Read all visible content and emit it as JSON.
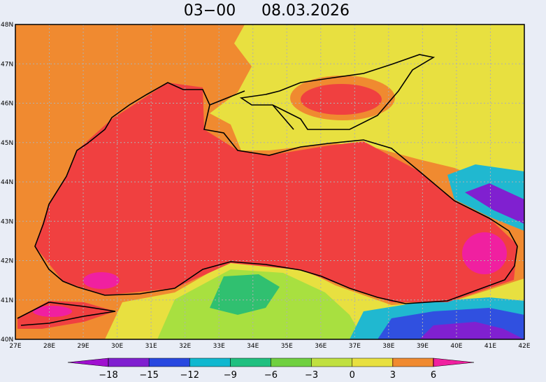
{
  "header": {
    "time": "03−00",
    "date": "08.03.2026"
  },
  "lat_labels": [
    "48N",
    "47N",
    "46N",
    "45N",
    "44N",
    "43N",
    "42N",
    "41N",
    "40N"
  ],
  "lon_labels": [
    "27E",
    "28E",
    "29E",
    "30E",
    "31E",
    "32E",
    "33E",
    "34E",
    "35E",
    "36E",
    "37E",
    "38E",
    "39E",
    "40E",
    "41E",
    "42E"
  ],
  "colorbar": {
    "labels": [
      "−18",
      "−15",
      "−12",
      "−9",
      "−6",
      "−3",
      "0",
      "3",
      "6"
    ]
  }
}
